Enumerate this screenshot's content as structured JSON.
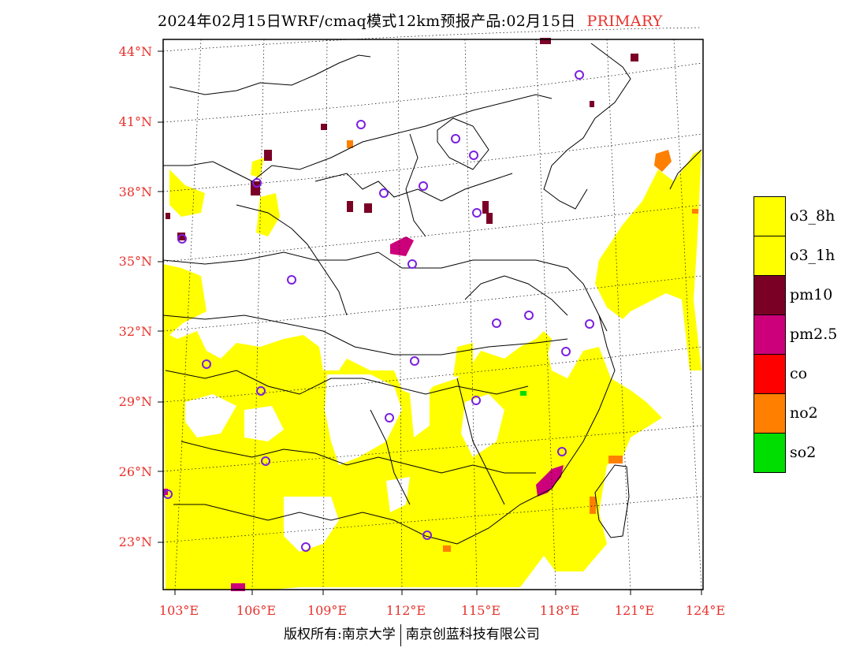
{
  "header": {
    "title": "2024年02月15日WRF/cmaq模式12km预报产品:02月15日",
    "tag": "PRIMARY"
  },
  "axes": {
    "lat_labels": [
      "44°N",
      "41°N",
      "38°N",
      "35°N",
      "32°N",
      "29°N",
      "26°N",
      "23°N"
    ],
    "lon_labels": [
      "103°E",
      "106°E",
      "109°E",
      "112°E",
      "115°E",
      "118°E",
      "121°E",
      "124°E"
    ]
  },
  "legend": {
    "items": [
      {
        "label": "o3_8h",
        "color": "#ffff00"
      },
      {
        "label": "o3_1h",
        "color": "#ffff00"
      },
      {
        "label": "pm10",
        "color": "#7a0026"
      },
      {
        "label": "pm2.5",
        "color": "#cc007a"
      },
      {
        "label": "co",
        "color": "#ff0000"
      },
      {
        "label": "no2",
        "color": "#ff7f00"
      },
      {
        "label": "so2",
        "color": "#00dd00"
      }
    ]
  },
  "footer": {
    "left": "版权所有:南京大学",
    "right": "南京创蓝科技有限公司"
  },
  "colors": {
    "axis_label": "#e8312b",
    "station_marker": "#7b1fe0"
  }
}
